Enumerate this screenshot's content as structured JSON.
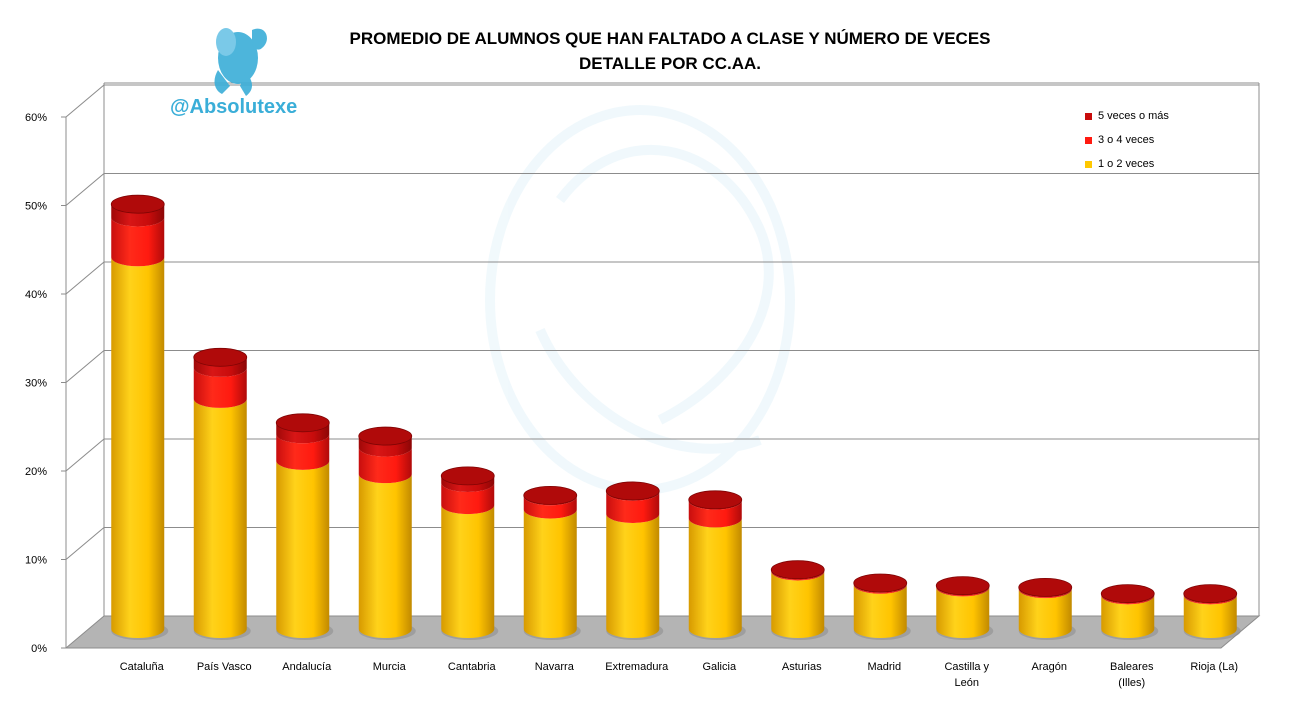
{
  "header": {
    "title_line1": "PROMEDIO DE ALUMNOS QUE HAN FALTADO A CLASE Y NÚMERO DE VECES",
    "title_line2": "DETALLE POR CC.AA."
  },
  "brand": {
    "handle": "@Absolutexe",
    "logo_icon": "griffin-logo-icon"
  },
  "colors": {
    "s1": "#FFC800",
    "s2": "#FF1A10",
    "s3": "#C80C0C",
    "brand": "#3aaed8"
  },
  "chart_data": {
    "type": "bar",
    "stacked": true,
    "three_d": true,
    "bar_shape": "cylinder",
    "categories": [
      [
        "Cataluña"
      ],
      [
        "País Vasco"
      ],
      [
        "Andalucía"
      ],
      [
        "Murcia"
      ],
      [
        "Cantabria"
      ],
      [
        "Navarra"
      ],
      [
        "Extremadura"
      ],
      [
        "Galicia"
      ],
      [
        "Asturias"
      ],
      [
        "Madrid"
      ],
      [
        "Castilla y",
        "León"
      ],
      [
        "Aragón"
      ],
      [
        "Baleares",
        "(Illes)"
      ],
      [
        "Rioja (La)"
      ]
    ],
    "series": [
      {
        "name": "1 o 2 veces",
        "values": [
          42,
          26,
          19,
          17.5,
          14,
          13.5,
          13,
          12.5,
          6.5,
          5,
          4.7,
          4.5,
          3.8,
          3.8
        ]
      },
      {
        "name": "3 o 4 veces",
        "values": [
          4.5,
          3.5,
          3,
          3,
          2.5,
          1.5,
          2.5,
          2,
          0.1,
          0.1,
          0.1,
          0.1,
          0.1,
          0.1
        ]
      },
      {
        "name": "5 veces o más",
        "values": [
          1.5,
          1.2,
          1.3,
          1.3,
          0.8,
          0.1,
          0.1,
          0.1,
          0.1,
          0.1,
          0.1,
          0.1,
          0.1,
          0.1
        ]
      }
    ],
    "y_ticks": [
      "0%",
      "10%",
      "20%",
      "30%",
      "40%",
      "50%",
      "60%"
    ],
    "ylim": [
      0,
      60
    ],
    "grid": true,
    "legend_position": "top-right",
    "legend_order": [
      "5 veces o más",
      "3 o 4 veces",
      "1 o 2 veces"
    ]
  }
}
